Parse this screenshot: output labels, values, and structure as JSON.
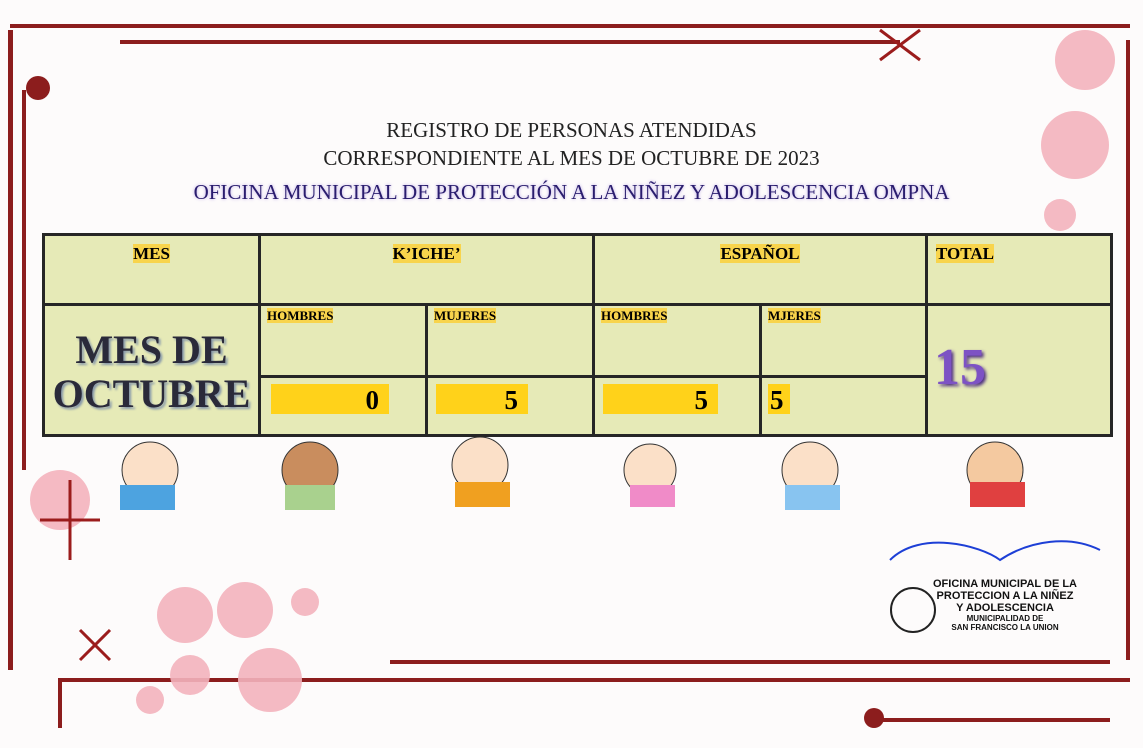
{
  "header": {
    "lines": [
      "REGISTRO DE PERSONAS ATENDIDAS",
      "CORRESPONDIENTE AL MES DE OCTUBRE DE 2023",
      "OFICINA MUNICIPAL DE PROTECCIÓN A LA NIÑEZ Y ADOLESCENCIA OMPNA"
    ]
  },
  "table": {
    "headers": [
      "MES",
      "K’ICHE’",
      "ESPAÑOL",
      "TOTAL"
    ],
    "subheaders": [
      "HOMBRES",
      "MUJERES",
      "HOMBRES",
      "MJERES"
    ],
    "month_lines": [
      "MES DE",
      "OCTUBRE"
    ],
    "values": [
      0,
      5,
      5,
      5
    ],
    "total": 15
  },
  "stamp": {
    "lines": [
      "OFICINA MUNICIPAL DE LA",
      "PROTECCION A LA NIÑEZ",
      "Y ADOLESCENCIA",
      "MUNICIPALIDAD DE",
      "SAN FRANCISCO LA UNION"
    ]
  }
}
